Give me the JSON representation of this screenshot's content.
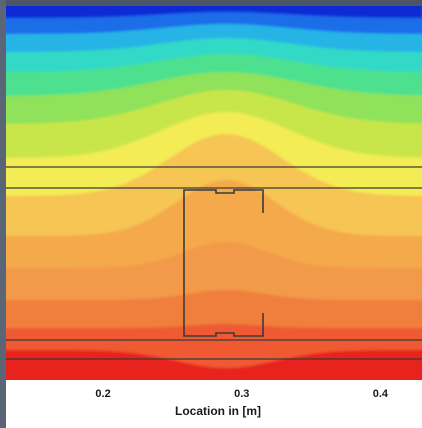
{
  "chart_data": {
    "type": "heatmap",
    "title": "",
    "xlabel": "Location in [m]",
    "ylabel": "",
    "x_ticks": [
      "0.2",
      "0.3",
      "0.4"
    ],
    "x_tick_values": [
      0.2,
      0.3,
      0.4
    ],
    "xlim": [
      0.13,
      0.43
    ],
    "colormap": [
      "#0a2ad6",
      "#1f6de8",
      "#27b4e6",
      "#32d9c6",
      "#4de08f",
      "#8fe25a",
      "#c8e64a",
      "#f3ec55",
      "#f6c553",
      "#f4a94c",
      "#f29a48",
      "#f07f3c",
      "#ef5a32",
      "#e8221c"
    ],
    "structure": "C-profile steel stud between two horizontal layer boundaries",
    "grid": false
  }
}
